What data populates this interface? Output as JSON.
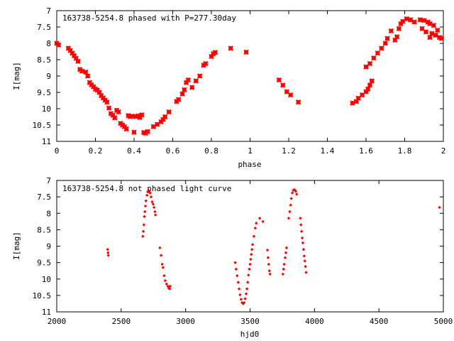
{
  "chart_data": [
    {
      "type": "scatter",
      "title": "163738-5254.8 phased with P=277.30day",
      "xlabel": "phase",
      "ylabel": "I[mag]",
      "xlim": [
        0,
        2
      ],
      "ylim": [
        11,
        7
      ],
      "y_inverted": true,
      "grid": false,
      "marker_color": "#ff0000",
      "x_ticks": [
        "0",
        "0.2",
        "0.4",
        "0.6",
        "0.8",
        "1",
        "1.2",
        "1.4",
        "1.6",
        "1.8",
        "2"
      ],
      "y_ticks": [
        "7",
        "7.5",
        "8",
        "8.5",
        "9",
        "9.5",
        "10",
        "10.5",
        "11"
      ],
      "points": [
        [
          0.0,
          8.0
        ],
        [
          0.01,
          8.05
        ],
        [
          0.06,
          8.15
        ],
        [
          0.07,
          8.22
        ],
        [
          0.08,
          8.3
        ],
        [
          0.09,
          8.38
        ],
        [
          0.1,
          8.46
        ],
        [
          0.11,
          8.55
        ],
        [
          0.12,
          8.8
        ],
        [
          0.13,
          8.85
        ],
        [
          0.15,
          8.88
        ],
        [
          0.16,
          9.0
        ],
        [
          0.17,
          9.2
        ],
        [
          0.18,
          9.27
        ],
        [
          0.19,
          9.33
        ],
        [
          0.2,
          9.4
        ],
        [
          0.21,
          9.43
        ],
        [
          0.22,
          9.5
        ],
        [
          0.23,
          9.6
        ],
        [
          0.24,
          9.67
        ],
        [
          0.25,
          9.74
        ],
        [
          0.26,
          9.8
        ],
        [
          0.27,
          9.98
        ],
        [
          0.28,
          10.15
        ],
        [
          0.29,
          10.2
        ],
        [
          0.3,
          10.28
        ],
        [
          0.31,
          10.05
        ],
        [
          0.32,
          10.1
        ],
        [
          0.33,
          10.45
        ],
        [
          0.34,
          10.5
        ],
        [
          0.35,
          10.55
        ],
        [
          0.36,
          10.62
        ],
        [
          0.37,
          10.21
        ],
        [
          0.38,
          10.24
        ],
        [
          0.39,
          10.23
        ],
        [
          0.4,
          10.72
        ],
        [
          0.41,
          10.24
        ],
        [
          0.42,
          10.22
        ],
        [
          0.43,
          10.27
        ],
        [
          0.44,
          10.19
        ],
        [
          0.45,
          10.73
        ],
        [
          0.46,
          10.75
        ],
        [
          0.47,
          10.7
        ],
        [
          0.5,
          10.55
        ],
        [
          0.52,
          10.48
        ],
        [
          0.54,
          10.4
        ],
        [
          0.55,
          10.33
        ],
        [
          0.56,
          10.25
        ],
        [
          0.58,
          10.1
        ],
        [
          0.62,
          9.78
        ],
        [
          0.63,
          9.72
        ],
        [
          0.65,
          9.55
        ],
        [
          0.66,
          9.42
        ],
        [
          0.67,
          9.2
        ],
        [
          0.68,
          9.12
        ],
        [
          0.7,
          9.35
        ],
        [
          0.72,
          9.15
        ],
        [
          0.74,
          9.0
        ],
        [
          0.76,
          8.67
        ],
        [
          0.77,
          8.62
        ],
        [
          0.8,
          8.4
        ],
        [
          0.81,
          8.32
        ],
        [
          0.82,
          8.28
        ],
        [
          0.9,
          8.15
        ],
        [
          0.98,
          8.27
        ],
        [
          1.15,
          9.12
        ],
        [
          1.17,
          9.28
        ],
        [
          1.19,
          9.48
        ],
        [
          1.21,
          9.58
        ],
        [
          1.25,
          9.8
        ],
        [
          1.53,
          9.83
        ],
        [
          1.55,
          9.78
        ],
        [
          1.56,
          9.68
        ],
        [
          1.58,
          9.58
        ],
        [
          1.6,
          9.48
        ],
        [
          1.61,
          9.4
        ],
        [
          1.62,
          9.28
        ],
        [
          1.63,
          9.15
        ],
        [
          1.6,
          8.72
        ],
        [
          1.62,
          8.62
        ],
        [
          1.64,
          8.45
        ],
        [
          1.66,
          8.3
        ],
        [
          1.68,
          8.15
        ],
        [
          1.7,
          8.0
        ],
        [
          1.71,
          7.85
        ],
        [
          1.73,
          7.62
        ],
        [
          1.75,
          7.9
        ],
        [
          1.76,
          7.8
        ],
        [
          1.77,
          7.55
        ],
        [
          1.78,
          7.4
        ],
        [
          1.79,
          7.33
        ],
        [
          1.81,
          7.25
        ],
        [
          1.83,
          7.28
        ],
        [
          1.85,
          7.35
        ],
        [
          1.88,
          7.28
        ],
        [
          1.9,
          7.3
        ],
        [
          1.92,
          7.35
        ],
        [
          1.93,
          7.4
        ],
        [
          1.95,
          7.45
        ],
        [
          1.97,
          7.6
        ],
        [
          1.89,
          7.55
        ],
        [
          1.91,
          7.65
        ],
        [
          1.94,
          7.7
        ],
        [
          1.96,
          7.75
        ],
        [
          1.98,
          7.82
        ],
        [
          1.99,
          7.85
        ],
        [
          1.93,
          7.82
        ]
      ]
    },
    {
      "type": "scatter",
      "title": "163738-5254.8 not phased light curve",
      "xlabel": "hjd0",
      "ylabel": "I[mag]",
      "xlim": [
        2000,
        5000
      ],
      "ylim": [
        11,
        7
      ],
      "y_inverted": true,
      "grid": false,
      "marker_color": "#ff0000",
      "x_ticks": [
        "2000",
        "2500",
        "3000",
        "3500",
        "4000",
        "4500",
        "5000"
      ],
      "y_ticks": [
        "7",
        "7.5",
        "8",
        "8.5",
        "9",
        "9.5",
        "10",
        "10.5",
        "11"
      ],
      "points": [
        [
          2395,
          9.1
        ],
        [
          2398,
          9.2
        ],
        [
          2400,
          9.28
        ],
        [
          2668,
          8.7
        ],
        [
          2672,
          8.55
        ],
        [
          2676,
          8.35
        ],
        [
          2680,
          8.1
        ],
        [
          2684,
          7.95
        ],
        [
          2688,
          7.78
        ],
        [
          2692,
          7.62
        ],
        [
          2700,
          7.45
        ],
        [
          2706,
          7.35
        ],
        [
          2712,
          7.3
        ],
        [
          2718,
          7.33
        ],
        [
          2725,
          7.38
        ],
        [
          2732,
          7.5
        ],
        [
          2740,
          7.65
        ],
        [
          2748,
          7.72
        ],
        [
          2755,
          7.82
        ],
        [
          2762,
          7.95
        ],
        [
          2766,
          8.05
        ],
        [
          2800,
          9.05
        ],
        [
          2810,
          9.28
        ],
        [
          2818,
          9.55
        ],
        [
          2825,
          9.65
        ],
        [
          2833,
          9.9
        ],
        [
          2842,
          10.05
        ],
        [
          2852,
          10.15
        ],
        [
          2862,
          10.22
        ],
        [
          2870,
          10.28
        ],
        [
          2877,
          10.3
        ],
        [
          2880,
          10.22
        ],
        [
          3385,
          9.5
        ],
        [
          3392,
          9.7
        ],
        [
          3400,
          9.9
        ],
        [
          3408,
          10.1
        ],
        [
          3415,
          10.3
        ],
        [
          3422,
          10.48
        ],
        [
          3430,
          10.62
        ],
        [
          3438,
          10.72
        ],
        [
          3446,
          10.75
        ],
        [
          3454,
          10.72
        ],
        [
          3462,
          10.6
        ],
        [
          3470,
          10.45
        ],
        [
          3476,
          10.3
        ],
        [
          3482,
          10.1
        ],
        [
          3488,
          9.88
        ],
        [
          3494,
          9.7
        ],
        [
          3500,
          9.55
        ],
        [
          3505,
          9.4
        ],
        [
          3510,
          9.25
        ],
        [
          3515,
          9.1
        ],
        [
          3520,
          8.95
        ],
        [
          3530,
          8.7
        ],
        [
          3540,
          8.45
        ],
        [
          3548,
          8.3
        ],
        [
          3575,
          8.15
        ],
        [
          3600,
          8.25
        ],
        [
          3635,
          9.12
        ],
        [
          3640,
          9.35
        ],
        [
          3645,
          9.55
        ],
        [
          3650,
          9.75
        ],
        [
          3655,
          9.85
        ],
        [
          3755,
          9.85
        ],
        [
          3760,
          9.7
        ],
        [
          3765,
          9.55
        ],
        [
          3772,
          9.35
        ],
        [
          3778,
          9.2
        ],
        [
          3783,
          9.05
        ],
        [
          3800,
          8.15
        ],
        [
          3808,
          7.95
        ],
        [
          3815,
          7.75
        ],
        [
          3820,
          7.55
        ],
        [
          3828,
          7.38
        ],
        [
          3835,
          7.3
        ],
        [
          3845,
          7.28
        ],
        [
          3855,
          7.33
        ],
        [
          3862,
          7.42
        ],
        [
          3890,
          8.15
        ],
        [
          3895,
          8.35
        ],
        [
          3900,
          8.55
        ],
        [
          3905,
          8.75
        ],
        [
          3910,
          8.9
        ],
        [
          3915,
          9.1
        ],
        [
          3920,
          9.3
        ],
        [
          3925,
          9.45
        ],
        [
          3930,
          9.62
        ],
        [
          3935,
          9.8
        ],
        [
          4970,
          7.82
        ]
      ]
    }
  ]
}
